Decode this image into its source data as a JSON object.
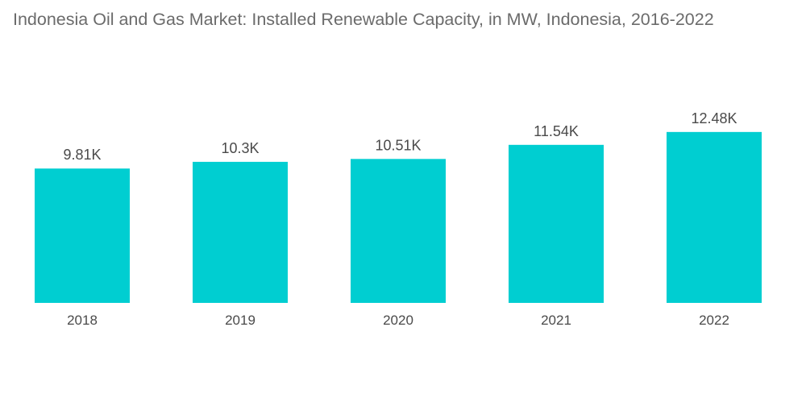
{
  "chart_data": {
    "type": "bar",
    "title": "Indonesia Oil and Gas Market: Installed Renewable Capacity, in MW, Indonesia, 2016-2022",
    "xlabel": "",
    "ylabel": "",
    "categories": [
      "2018",
      "2019",
      "2020",
      "2021",
      "2022"
    ],
    "values": [
      9.81,
      10.3,
      10.51,
      11.54,
      12.48
    ],
    "value_labels": [
      "9.81K",
      "10.3K",
      "10.51K",
      "11.54K",
      "12.48K"
    ],
    "units": "thousand MW",
    "ylim": [
      0,
      12.48
    ],
    "grid": false,
    "legend": "none",
    "bar_color": "#00ced1"
  }
}
